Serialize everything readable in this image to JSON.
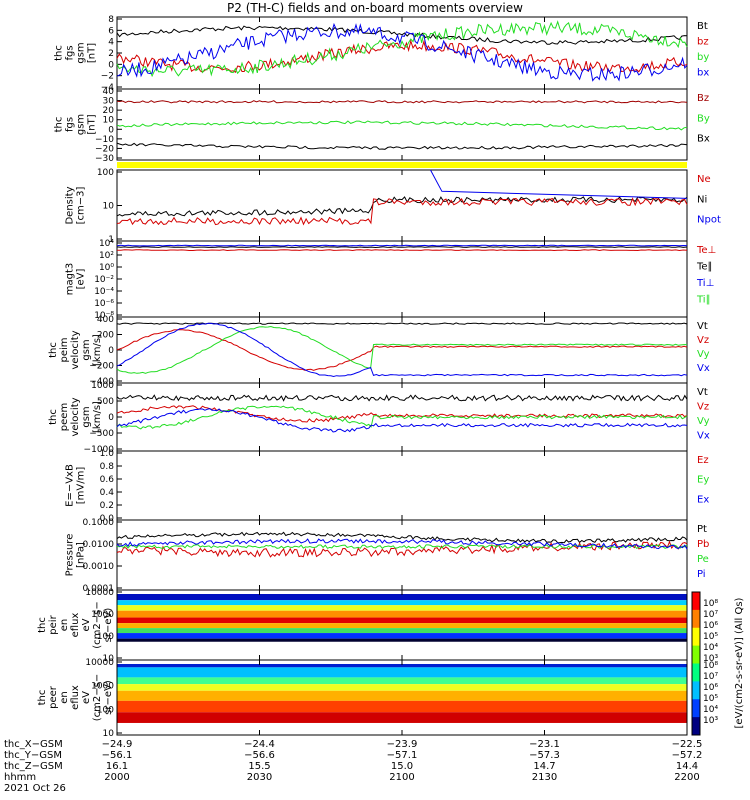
{
  "title": "P2 (TH-C) fields and on-board moments overview",
  "colors": {
    "black": "#000000",
    "red": "#d40000",
    "green": "#22dd22",
    "blue": "#0000ee",
    "darkred": "#a00000",
    "yellow": "#ffff00"
  },
  "chart_data": [
    {
      "id": "fgs-gsm",
      "type": "line",
      "ylabel": [
        "thc",
        "fgs",
        "gsm",
        "[nT]"
      ],
      "ticks": [
        "8",
        "6",
        "4",
        "2",
        "0",
        "−2",
        "−4"
      ],
      "series": [
        {
          "name": "Bt",
          "color": "#000000"
        },
        {
          "name": "bz",
          "color": "#d40000"
        },
        {
          "name": "by",
          "color": "#22dd22"
        },
        {
          "name": "bx",
          "color": "#0000ee"
        }
      ]
    },
    {
      "id": "fgs-gse",
      "type": "line",
      "ylabel": [
        "thc",
        "fgs",
        "gsm",
        "[nT]"
      ],
      "ticks": [
        "40",
        "30",
        "20",
        "10",
        "0",
        "−10",
        "−20",
        "−30"
      ],
      "series": [
        {
          "name": "Bz",
          "color": "#a00000"
        },
        {
          "name": "By",
          "color": "#22dd22"
        },
        {
          "name": "Bx",
          "color": "#000000"
        }
      ]
    },
    {
      "id": "density",
      "type": "line",
      "ylabel": [
        "Density",
        "[cm−3]"
      ],
      "ticks": [
        "100",
        "10",
        "1"
      ],
      "series": [
        {
          "name": "Ne",
          "color": "#d40000"
        },
        {
          "name": "Ni",
          "color": "#000000"
        },
        {
          "name": "Npot",
          "color": "#0000ee"
        }
      ]
    },
    {
      "id": "temperature",
      "type": "line",
      "ylabel": [
        "magt3",
        "[eV]"
      ],
      "ticks": [
        "10⁴",
        "10²",
        "10⁰",
        "10⁻²",
        "10⁻⁴",
        "10⁻⁶",
        "10⁻⁸"
      ],
      "series": [
        {
          "name": "Te⊥",
          "color": "#d40000"
        },
        {
          "name": "Te∥",
          "color": "#000000"
        },
        {
          "name": "Ti⊥",
          "color": "#0000ee"
        },
        {
          "name": "Ti∥",
          "color": "#22dd22"
        }
      ]
    },
    {
      "id": "peim-velocity",
      "type": "line",
      "ylabel": [
        "thc",
        "peim",
        "velocity",
        "gsm",
        "[km/s]"
      ],
      "ticks": [
        "400",
        "200",
        "0",
        "−200",
        "−400"
      ],
      "series": [
        {
          "name": "Vt",
          "color": "#000000"
        },
        {
          "name": "Vz",
          "color": "#d40000"
        },
        {
          "name": "Vy",
          "color": "#22dd22"
        },
        {
          "name": "Vx",
          "color": "#0000ee"
        }
      ]
    },
    {
      "id": "peem-velocity",
      "type": "line",
      "ylabel": [
        "thc",
        "peem",
        "velocity",
        "gsm",
        "[km/s]"
      ],
      "ticks": [
        "1000",
        "500",
        "0",
        "−500",
        "−1000"
      ],
      "series": [
        {
          "name": "Vt",
          "color": "#000000"
        },
        {
          "name": "Vz",
          "color": "#d40000"
        },
        {
          "name": "Vy",
          "color": "#22dd22"
        },
        {
          "name": "Vx",
          "color": "#0000ee"
        }
      ]
    },
    {
      "id": "efield",
      "type": "line",
      "ylabel": [
        "E=−VxB",
        "[mV/m]"
      ],
      "ticks": [
        "1.0",
        "0.8",
        "0.6",
        "0.4",
        "0.2",
        "0.0"
      ],
      "series": [
        {
          "name": "Ez",
          "color": "#d40000"
        },
        {
          "name": "Ey",
          "color": "#22dd22"
        },
        {
          "name": "Ex",
          "color": "#0000ee"
        }
      ]
    },
    {
      "id": "pressure",
      "type": "line",
      "ylabel": [
        "Pressure",
        "[nPa]"
      ],
      "ticks": [
        "0.1000",
        "0.0100",
        "0.0010",
        "0.0001"
      ],
      "series": [
        {
          "name": "Pt",
          "color": "#000000"
        },
        {
          "name": "Pb",
          "color": "#d40000"
        },
        {
          "name": "Pe",
          "color": "#22dd22"
        },
        {
          "name": "Pi",
          "color": "#0000ee"
        }
      ]
    },
    {
      "id": "peir-spectrogram",
      "type": "heatmap",
      "ylabel": [
        "thc",
        "peir",
        "en",
        "eflux",
        "eV",
        "(cm2−s−",
        "sr−eV)"
      ],
      "ticks": [
        "10000",
        "1000",
        "100",
        "10"
      ],
      "colorbar_label": "[eV/(cm2-s-sr-eV)] (All Qs)",
      "colorbar_ticks": [
        "10⁸",
        "10⁷",
        "10⁶",
        "10⁵",
        "10⁴",
        "10³"
      ]
    },
    {
      "id": "peer-spectrogram",
      "type": "heatmap",
      "ylabel": [
        "thc",
        "peer",
        "en",
        "eflux",
        "eV",
        "(cm2−s−",
        "sr−eV)"
      ],
      "ticks": [
        "10000",
        "1000",
        "100",
        "10"
      ],
      "colorbar_label": "[eV/(cm2-s-sr-eV)] (All Qs)",
      "colorbar_ticks": [
        "10⁸",
        "10⁷",
        "10⁶",
        "10⁵",
        "10⁴",
        "10³"
      ]
    }
  ],
  "x_axis": {
    "rows": [
      {
        "label": "thc_X−GSM",
        "values": [
          "−24.9",
          "−24.4",
          "−23.9",
          "−23.1",
          "−22.5"
        ]
      },
      {
        "label": "thc_Y−GSM",
        "values": [
          "−56.1",
          "−56.6",
          "−57.1",
          "−57.3",
          "−57.2"
        ]
      },
      {
        "label": "thc_Z−GSM",
        "values": [
          "16.1",
          "15.5",
          "15.0",
          "14.7",
          "14.4"
        ]
      },
      {
        "label": "hhmm",
        "values": [
          "2000",
          "2030",
          "2100",
          "2130",
          "2200"
        ]
      }
    ],
    "date": "2021 Oct 26"
  }
}
